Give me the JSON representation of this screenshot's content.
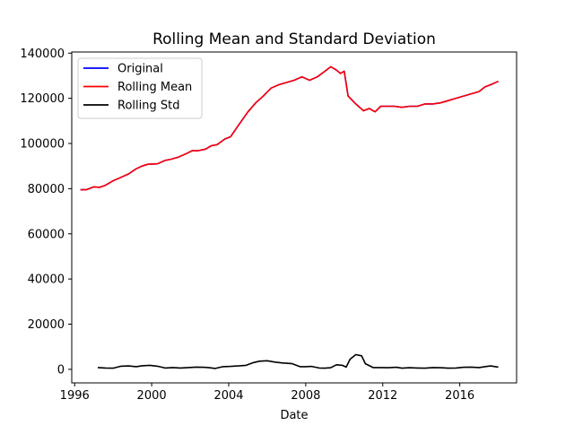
{
  "chart_data": {
    "type": "line",
    "title": "Rolling Mean and Standard Deviation",
    "xlabel": "Date",
    "ylabel": "",
    "xlim": [
      1995.85,
      2018.95
    ],
    "ylim": [
      -6000,
      140500
    ],
    "grid": false,
    "legend_position": "top-left",
    "x_ticks": [
      {
        "value": 1996,
        "label": "1996"
      },
      {
        "value": 2000,
        "label": "2000"
      },
      {
        "value": 2004,
        "label": "2004"
      },
      {
        "value": 2008,
        "label": "2008"
      },
      {
        "value": 2012,
        "label": "2012"
      },
      {
        "value": 2016,
        "label": "2016"
      }
    ],
    "y_ticks": [
      {
        "value": 0,
        "label": "0"
      },
      {
        "value": 20000,
        "label": "20000"
      },
      {
        "value": 40000,
        "label": "40000"
      },
      {
        "value": 60000,
        "label": "60000"
      },
      {
        "value": 80000,
        "label": "80000"
      },
      {
        "value": 100000,
        "label": "100000"
      },
      {
        "value": 120000,
        "label": "120000"
      },
      {
        "value": 140000,
        "label": "140000"
      }
    ],
    "series": [
      {
        "name": "Original",
        "color": "#0000ff",
        "x": [
          1996.3,
          1996.6,
          1997.0,
          1997.3,
          1997.6,
          1998.0,
          1998.4,
          1998.8,
          1999.2,
          1999.5,
          1999.8,
          2000.3,
          2000.7,
          2001.0,
          2001.4,
          2001.8,
          2002.1,
          2002.4,
          2002.8,
          2003.1,
          2003.4,
          2003.8,
          2004.1,
          2004.5,
          2005.0,
          2005.4,
          2005.8,
          2006.2,
          2006.6,
          2007.0,
          2007.4,
          2007.8,
          2008.2,
          2008.6,
          2009.0,
          2009.3,
          2009.6,
          2009.8,
          2010.0,
          2010.2,
          2010.6,
          2011.0,
          2011.3,
          2011.6,
          2011.9,
          2012.2,
          2012.6,
          2013.0,
          2013.4,
          2013.8,
          2014.2,
          2014.6,
          2015.0,
          2015.4,
          2015.8,
          2016.2,
          2016.6,
          2017.0,
          2017.3,
          2017.6,
          2018.0
        ],
        "values": [
          79500,
          79500,
          80800,
          80600,
          81500,
          83500,
          85000,
          86500,
          88800,
          90000,
          90800,
          91000,
          92500,
          93000,
          94000,
          95500,
          96800,
          96800,
          97500,
          99000,
          99500,
          102000,
          103000,
          108000,
          114000,
          118000,
          121000,
          124500,
          126000,
          127000,
          128000,
          129500,
          128000,
          129500,
          132000,
          134000,
          132500,
          131000,
          132000,
          121000,
          117500,
          114500,
          115500,
          114000,
          116500,
          116500,
          116500,
          116000,
          116500,
          116500,
          117500,
          117500,
          118000,
          119000,
          120000,
          121000,
          122000,
          123000,
          125000,
          126000,
          127500
        ]
      },
      {
        "name": "Rolling Mean",
        "color": "#ff0000",
        "x": [
          1996.3,
          1996.6,
          1997.0,
          1997.3,
          1997.6,
          1998.0,
          1998.4,
          1998.8,
          1999.2,
          1999.5,
          1999.8,
          2000.3,
          2000.7,
          2001.0,
          2001.4,
          2001.8,
          2002.1,
          2002.4,
          2002.8,
          2003.1,
          2003.4,
          2003.8,
          2004.1,
          2004.5,
          2005.0,
          2005.4,
          2005.8,
          2006.2,
          2006.6,
          2007.0,
          2007.4,
          2007.8,
          2008.2,
          2008.6,
          2009.0,
          2009.3,
          2009.6,
          2009.8,
          2010.0,
          2010.2,
          2010.6,
          2011.0,
          2011.3,
          2011.6,
          2011.9,
          2012.2,
          2012.6,
          2013.0,
          2013.4,
          2013.8,
          2014.2,
          2014.6,
          2015.0,
          2015.4,
          2015.8,
          2016.2,
          2016.6,
          2017.0,
          2017.3,
          2017.6,
          2018.0
        ],
        "values": [
          79500,
          79500,
          80800,
          80600,
          81500,
          83500,
          85000,
          86500,
          88800,
          90000,
          90800,
          91000,
          92500,
          93000,
          94000,
          95500,
          96800,
          96800,
          97500,
          99000,
          99500,
          102000,
          103000,
          108000,
          114000,
          118000,
          121000,
          124500,
          126000,
          127000,
          128000,
          129500,
          128000,
          129500,
          132000,
          134000,
          132500,
          131000,
          132000,
          121000,
          117500,
          114500,
          115500,
          114000,
          116500,
          116500,
          116500,
          116000,
          116500,
          116500,
          117500,
          117500,
          118000,
          119000,
          120000,
          121000,
          122000,
          123000,
          125000,
          126000,
          127500
        ]
      },
      {
        "name": "Rolling Std",
        "color": "#000000",
        "x": [
          1997.2,
          1997.6,
          1998.0,
          1998.4,
          1998.8,
          1999.2,
          1999.5,
          1999.9,
          2000.3,
          2000.7,
          2001.1,
          2001.5,
          2001.9,
          2002.3,
          2002.7,
          2003.0,
          2003.3,
          2003.7,
          2004.1,
          2004.5,
          2004.9,
          2005.3,
          2005.6,
          2006.0,
          2006.4,
          2006.8,
          2007.0,
          2007.3,
          2007.7,
          2008.0,
          2008.3,
          2008.7,
          2009.0,
          2009.3,
          2009.6,
          2009.9,
          2010.1,
          2010.3,
          2010.6,
          2010.9,
          2011.1,
          2011.5,
          2011.9,
          2012.3,
          2012.7,
          2013.0,
          2013.4,
          2013.8,
          2014.2,
          2014.6,
          2015.0,
          2015.4,
          2015.8,
          2016.2,
          2016.6,
          2017.0,
          2017.3,
          2017.6,
          2018.0
        ],
        "values": [
          800,
          600,
          500,
          1400,
          1500,
          1200,
          1600,
          1800,
          1400,
          600,
          800,
          600,
          800,
          1000,
          900,
          700,
          400,
          1200,
          1300,
          1500,
          1800,
          3000,
          3600,
          3800,
          3200,
          2800,
          2700,
          2500,
          1200,
          1200,
          1300,
          600,
          500,
          700,
          2000,
          1800,
          1000,
          4500,
          6500,
          6000,
          2500,
          800,
          800,
          700,
          900,
          500,
          700,
          600,
          500,
          800,
          700,
          500,
          600,
          900,
          1000,
          800,
          1200,
          1500,
          1000
        ]
      }
    ]
  }
}
